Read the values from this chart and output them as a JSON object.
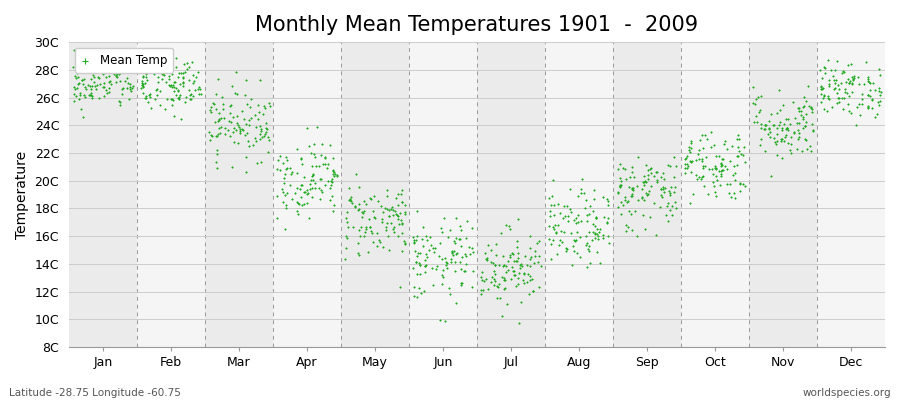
{
  "title": "Monthly Mean Temperatures 1901  -  2009",
  "ylabel": "Temperature",
  "xlabel_labels": [
    "Jan",
    "Feb",
    "Mar",
    "Apr",
    "May",
    "Jun",
    "Jul",
    "Aug",
    "Sep",
    "Oct",
    "Nov",
    "Dec"
  ],
  "ytick_labels": [
    "8C",
    "10C",
    "12C",
    "14C",
    "16C",
    "18C",
    "20C",
    "22C",
    "24C",
    "26C",
    "28C",
    "30C"
  ],
  "ytick_values": [
    8,
    10,
    12,
    14,
    16,
    18,
    20,
    22,
    24,
    26,
    28,
    30
  ],
  "ylim": [
    8,
    30
  ],
  "xlim_min": 0,
  "xlim_max": 12,
  "dot_color": "#22aa22",
  "dot_size": 3,
  "legend_label": "Mean Temp",
  "footer_left": "Latitude -28.75 Longitude -60.75",
  "footer_right": "worldspecies.org",
  "background_color": "#ffffff",
  "plot_bg_color": "#f0f0f0",
  "grid_color": "#dddddd",
  "title_fontsize": 15,
  "axis_label_fontsize": 10,
  "tick_fontsize": 9,
  "num_years": 109,
  "month_means": [
    27.0,
    26.8,
    24.2,
    20.2,
    17.2,
    14.2,
    13.8,
    16.5,
    19.2,
    21.2,
    24.0,
    26.6
  ],
  "month_stds": [
    0.9,
    1.1,
    1.3,
    1.4,
    1.4,
    1.5,
    1.4,
    1.4,
    1.4,
    1.3,
    1.3,
    1.0
  ]
}
